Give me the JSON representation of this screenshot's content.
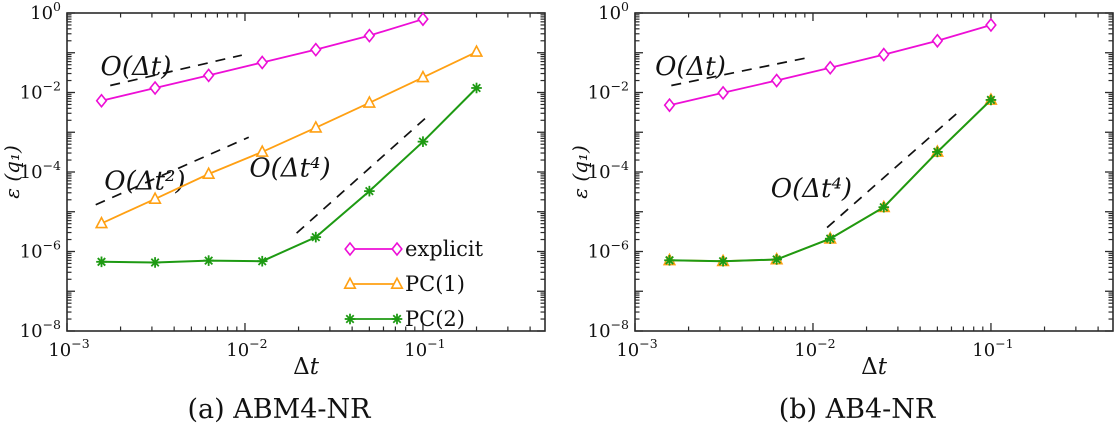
{
  "figure": {
    "background": "#ffffff",
    "frame_color": "#2b2b2b",
    "text_color": "#111111",
    "guide_color": "#111111"
  },
  "chart_data": [
    {
      "type": "line",
      "caption": "(a) ABM4-NR",
      "xlabel": "Δt",
      "ylabel": "ε (q₁)",
      "x_scale": "log",
      "y_scale": "log",
      "xlim": [
        0.001,
        0.485
      ],
      "ylim": [
        1e-08,
        1.0
      ],
      "x_tick_exponents": [
        -3,
        -2,
        -1
      ],
      "y_tick_exponents": [
        0,
        -2,
        -4,
        -6,
        -8
      ],
      "grid": false,
      "legend": {
        "show": true,
        "position": "lower-right-inside"
      },
      "series": [
        {
          "name": "explicit",
          "color": "#ED0ED6",
          "marker": "diamond",
          "x": [
            0.0015625,
            0.003125,
            0.00625,
            0.0125,
            0.025,
            0.05,
            0.1
          ],
          "y": [
            0.0062,
            0.013,
            0.027,
            0.057,
            0.12,
            0.27,
            0.7
          ]
        },
        {
          "name": "PC(1)",
          "color": "#FFA013",
          "marker": "triangle",
          "x": [
            0.0015625,
            0.003125,
            0.00625,
            0.0125,
            0.025,
            0.05,
            0.1,
            0.2
          ],
          "y": [
            5.1e-06,
            2.1e-05,
            8.9e-05,
            0.00032,
            0.0013,
            0.0055,
            0.024,
            0.105
          ]
        },
        {
          "name": "PC(2)",
          "color": "#1E9A13",
          "marker": "star",
          "x": [
            0.0015625,
            0.003125,
            0.00625,
            0.0125,
            0.025,
            0.05,
            0.1,
            0.2
          ],
          "y": [
            5.5e-07,
            5.3e-07,
            5.9e-07,
            5.7e-07,
            2.3e-06,
            3.3e-05,
            0.00058,
            0.013
          ]
        }
      ],
      "guides": [
        {
          "label": "O(Δt)",
          "x": [
            0.00175,
            0.0096
          ],
          "y": [
            0.015,
            0.087
          ],
          "label_at": [
            0.00244,
            0.046
          ]
        },
        {
          "label": "O(Δt²)",
          "x": [
            0.00145,
            0.0105
          ],
          "y": [
            1.5e-05,
            0.00075
          ],
          "label_at": [
            0.00274,
            6.1e-05
          ]
        },
        {
          "label": "O(Δt⁴)",
          "x": [
            0.0195,
            0.11
          ],
          "y": [
            2.9e-06,
            0.0029
          ],
          "label_at": [
            0.0179,
            0.00013
          ]
        }
      ]
    },
    {
      "type": "line",
      "caption": "(b) AB4-NR",
      "xlabel": "Δt",
      "ylabel": "ε (q₁)",
      "x_scale": "log",
      "y_scale": "log",
      "xlim": [
        0.001,
        0.485
      ],
      "ylim": [
        1e-08,
        1.0
      ],
      "x_tick_exponents": [
        -3,
        -2,
        -1
      ],
      "y_tick_exponents": [
        0,
        -2,
        -4,
        -6,
        -8
      ],
      "grid": false,
      "legend": {
        "show": false
      },
      "series": [
        {
          "name": "explicit",
          "color": "#ED0ED6",
          "marker": "diamond",
          "x": [
            0.0015625,
            0.003125,
            0.00625,
            0.0125,
            0.025,
            0.05,
            0.1
          ],
          "y": [
            0.0048,
            0.0098,
            0.02,
            0.042,
            0.09,
            0.2,
            0.5
          ]
        },
        {
          "name": "PC(1)",
          "color": "#FFA013",
          "marker": "triangle",
          "x": [
            0.0015625,
            0.003125,
            0.00625,
            0.0125,
            0.025,
            0.05,
            0.1
          ],
          "y": [
            6e-07,
            5.7e-07,
            6.3e-07,
            2.1e-06,
            1.3e-05,
            0.00032,
            0.0065
          ]
        },
        {
          "name": "PC(2)",
          "color": "#1E9A13",
          "marker": "star",
          "x": [
            0.0015625,
            0.003125,
            0.00625,
            0.0125,
            0.025,
            0.05,
            0.1
          ],
          "y": [
            6e-07,
            5.7e-07,
            6.3e-07,
            2.1e-06,
            1.3e-05,
            0.00032,
            0.0065
          ]
        }
      ],
      "guides": [
        {
          "label": "O(Δt)",
          "x": [
            0.0016,
            0.0097
          ],
          "y": [
            0.015,
            0.078
          ],
          "label_at": [
            0.00205,
            0.046
          ]
        },
        {
          "label": "O(Δt⁴)",
          "x": [
            0.012,
            0.066
          ],
          "y": [
            4e-06,
            0.0033
          ],
          "label_at": [
            0.0098,
            4e-05
          ]
        }
      ]
    }
  ]
}
